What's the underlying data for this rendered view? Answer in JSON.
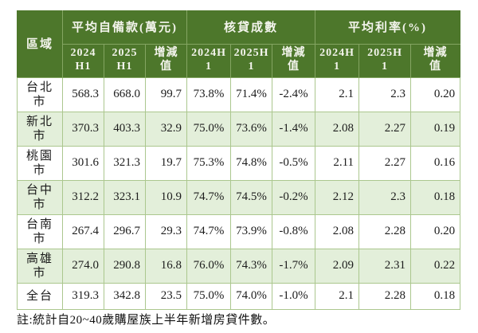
{
  "colors": {
    "header_bg": "#4d772b",
    "header_text": "#f3f4ec",
    "row_alt_bg": "#e3efda",
    "grid_line": "#abc78e",
    "body_text": "#1c1c1c"
  },
  "table": {
    "corner_label": "區域",
    "groups": [
      {
        "label": "平均自備款(萬元)",
        "sub": [
          [
            "2024",
            "H1"
          ],
          [
            "2025",
            "H1"
          ],
          [
            "增減",
            "值"
          ]
        ]
      },
      {
        "label": "核貸成數",
        "sub": [
          [
            "2024H",
            "1"
          ],
          [
            "2025H",
            "1"
          ],
          [
            "增減",
            "值"
          ]
        ]
      },
      {
        "label": "平均利率(%)",
        "sub": [
          [
            "2024H",
            "1"
          ],
          [
            "2025H",
            "1"
          ],
          [
            "增減",
            "值"
          ]
        ]
      }
    ],
    "rows": [
      {
        "region": [
          "台北",
          "市"
        ],
        "values": [
          "568.3",
          "668.0",
          "99.7",
          "73.8%",
          "71.4%",
          "-2.4%",
          "2.1",
          "2.3",
          "0.20"
        ]
      },
      {
        "region": [
          "新北",
          "市"
        ],
        "values": [
          "370.3",
          "403.3",
          "32.9",
          "75.0%",
          "73.6%",
          "-1.4%",
          "2.08",
          "2.27",
          "0.19"
        ]
      },
      {
        "region": [
          "桃園",
          "市"
        ],
        "values": [
          "301.6",
          "321.3",
          "19.7",
          "75.3%",
          "74.8%",
          "-0.5%",
          "2.11",
          "2.27",
          "0.16"
        ]
      },
      {
        "region": [
          "台中",
          "市"
        ],
        "values": [
          "312.2",
          "323.1",
          "10.9",
          "74.7%",
          "74.5%",
          "-0.2%",
          "2.12",
          "2.3",
          "0.18"
        ]
      },
      {
        "region": [
          "台南",
          "市"
        ],
        "values": [
          "267.4",
          "296.7",
          "29.3",
          "74.7%",
          "73.9%",
          "-0.8%",
          "2.08",
          "2.28",
          "0.20"
        ]
      },
      {
        "region": [
          "高雄",
          "市"
        ],
        "values": [
          "274.0",
          "290.8",
          "16.8",
          "76.0%",
          "74.3%",
          "-1.7%",
          "2.09",
          "2.31",
          "0.22"
        ]
      },
      {
        "region": "全台",
        "values": [
          "319.3",
          "342.8",
          "23.5",
          "75.0%",
          "74.0%",
          "-1.0%",
          "2.1",
          "2.28",
          "0.18"
        ]
      }
    ]
  },
  "footnote": "註:統計自20~40歲購屋族上半年新增房貸件數。",
  "chart_data": {
    "type": "table",
    "title": "",
    "column_groups": [
      "平均自備款(萬元)",
      "核貸成數",
      "平均利率(%)"
    ],
    "columns": [
      "區域",
      "平均自備款(萬元) 2024H1",
      "平均自備款(萬元) 2025H1",
      "平均自備款(萬元) 增減值",
      "核貸成數 2024H1",
      "核貸成數 2025H1",
      "核貸成數 增減值",
      "平均利率(%) 2024H1",
      "平均利率(%) 2025H1",
      "平均利率(%) 增減值"
    ],
    "rows": [
      [
        "台北市",
        568.3,
        668.0,
        99.7,
        "73.8%",
        "71.4%",
        "-2.4%",
        2.1,
        2.3,
        0.2
      ],
      [
        "新北市",
        370.3,
        403.3,
        32.9,
        "75.0%",
        "73.6%",
        "-1.4%",
        2.08,
        2.27,
        0.19
      ],
      [
        "桃園市",
        301.6,
        321.3,
        19.7,
        "75.3%",
        "74.8%",
        "-0.5%",
        2.11,
        2.27,
        0.16
      ],
      [
        "台中市",
        312.2,
        323.1,
        10.9,
        "74.7%",
        "74.5%",
        "-0.2%",
        2.12,
        2.3,
        0.18
      ],
      [
        "台南市",
        267.4,
        296.7,
        29.3,
        "74.7%",
        "73.9%",
        "-0.8%",
        2.08,
        2.28,
        0.2
      ],
      [
        "高雄市",
        274.0,
        290.8,
        16.8,
        "76.0%",
        "74.3%",
        "-1.7%",
        2.09,
        2.31,
        0.22
      ],
      [
        "全台",
        319.3,
        342.8,
        23.5,
        "75.0%",
        "74.0%",
        "-1.0%",
        2.1,
        2.28,
        0.18
      ]
    ],
    "note": "註:統計自20~40歲購屋族上半年新增房貸件數。"
  }
}
